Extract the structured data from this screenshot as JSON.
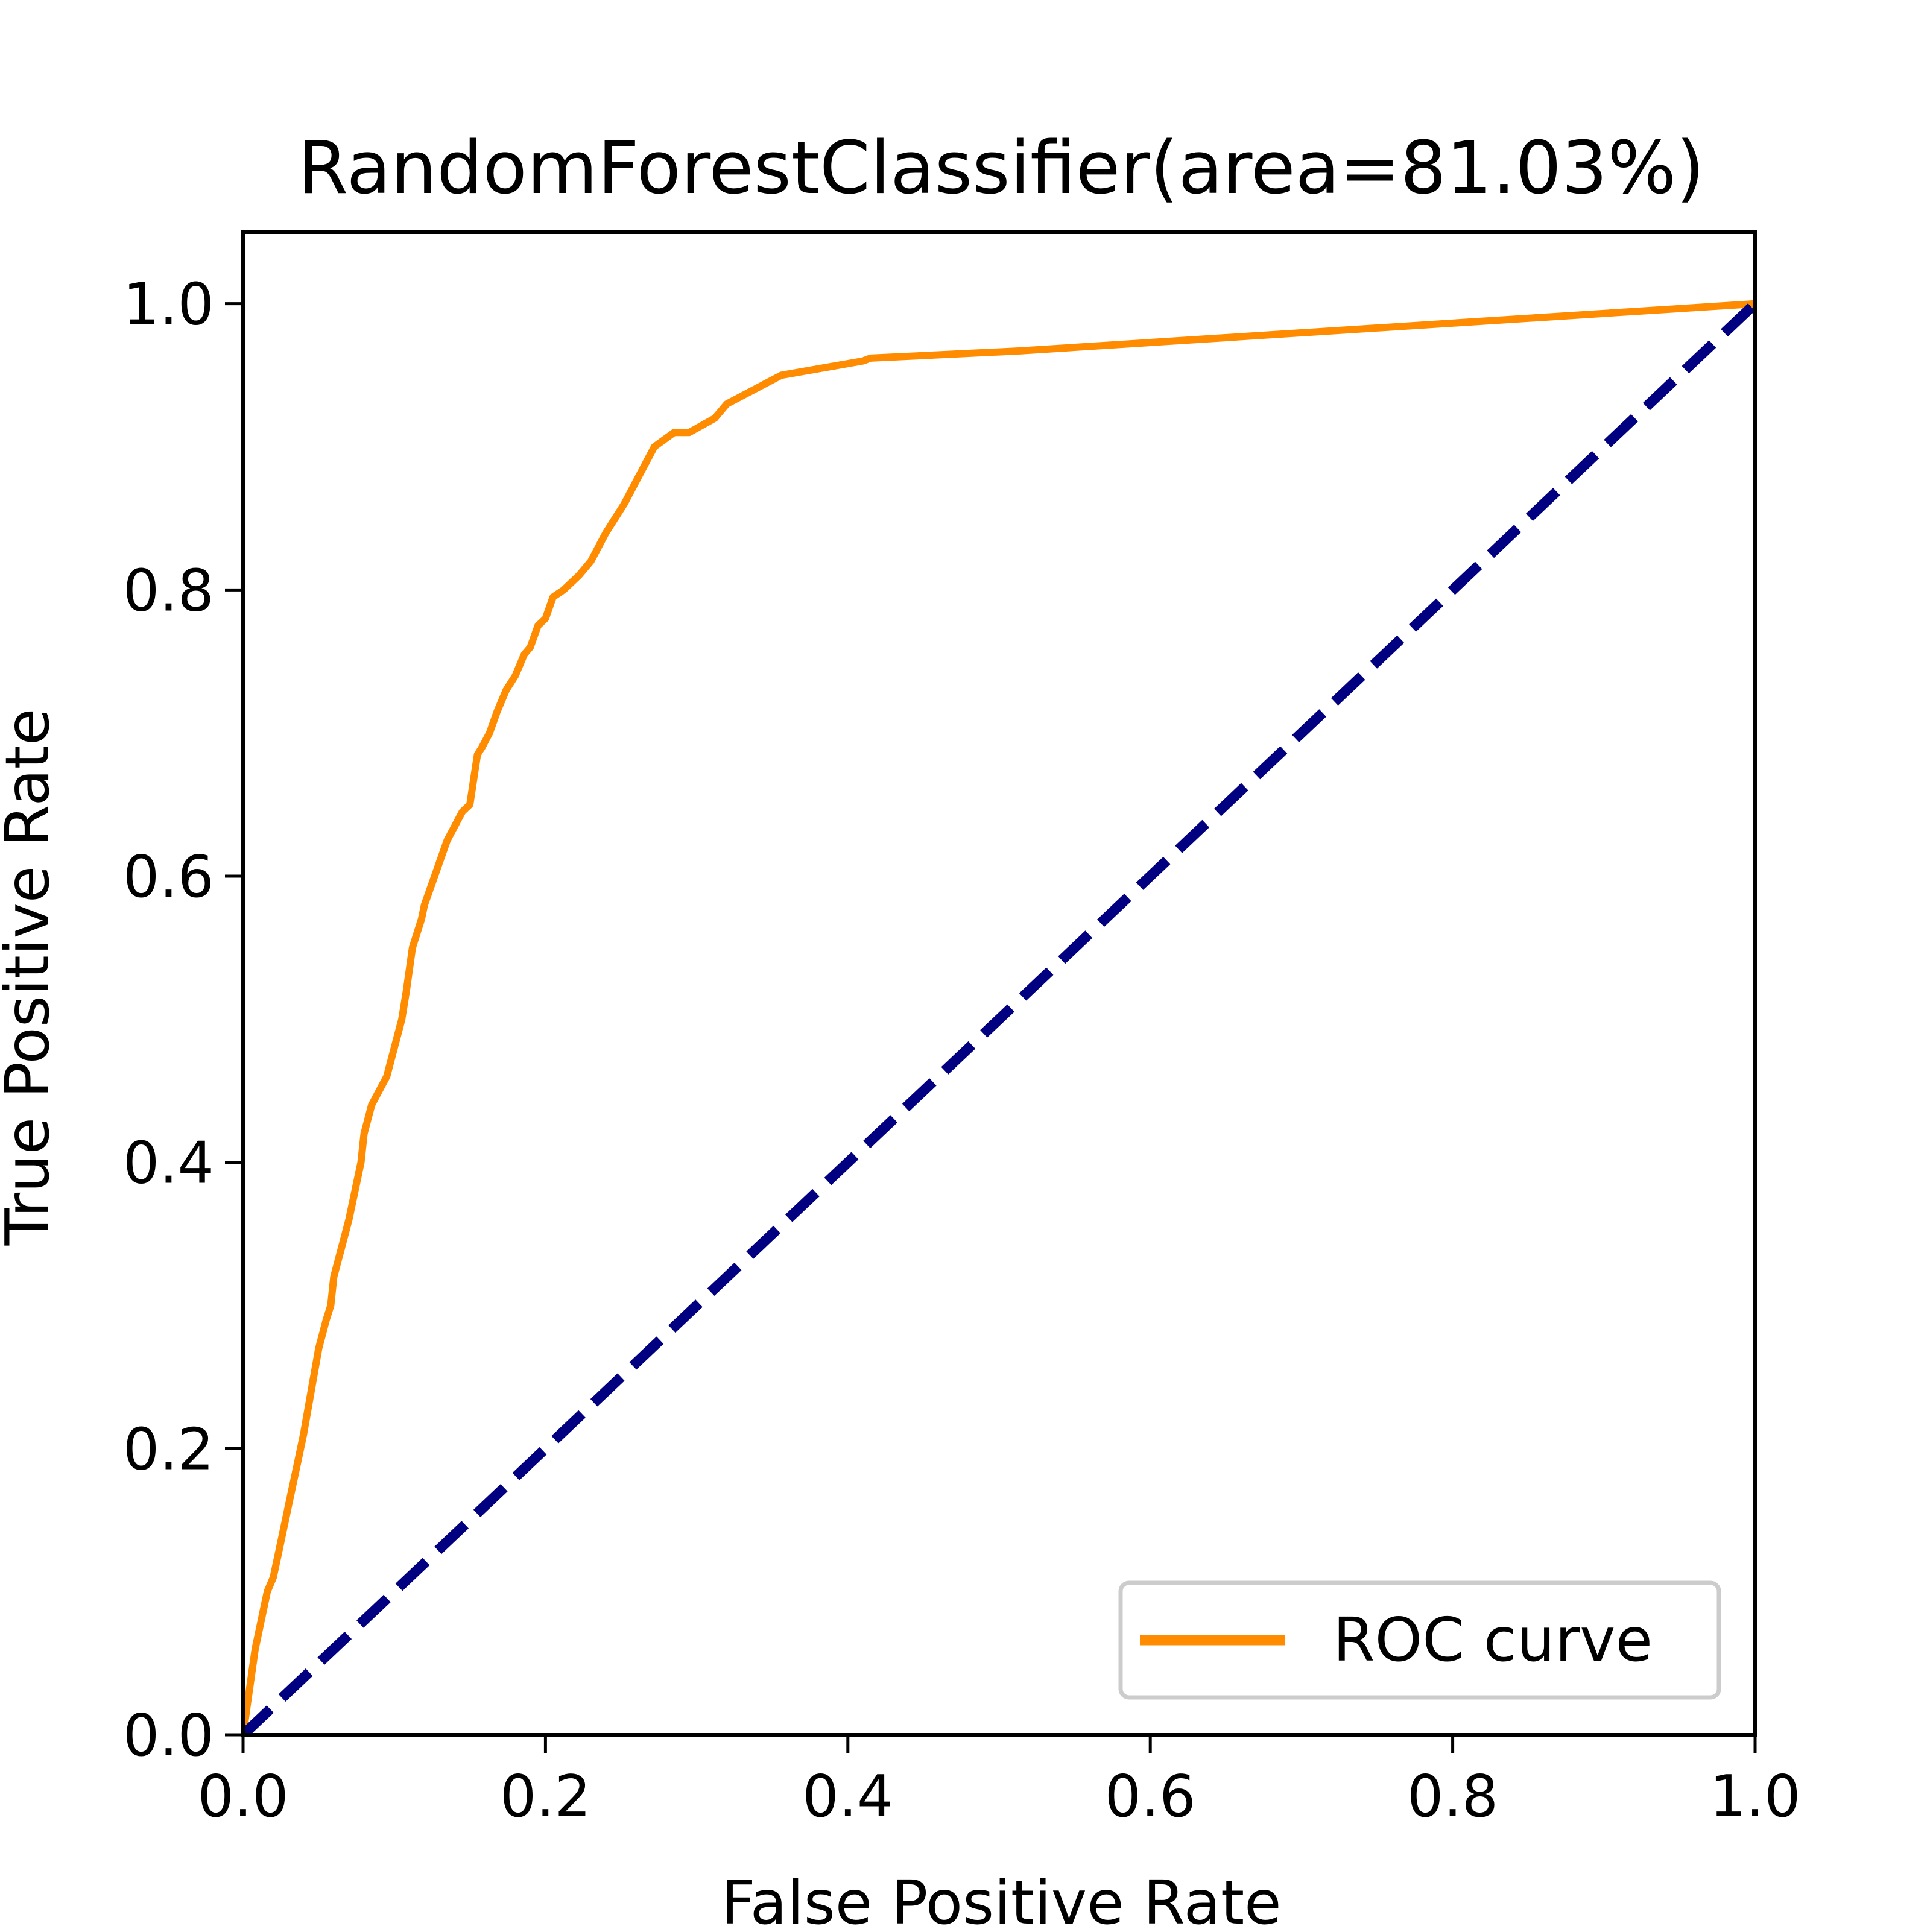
{
  "chart_data": {
    "type": "line",
    "title": "RandomForestClassifier(area=81.03%)",
    "xlabel": "False Positive Rate",
    "ylabel": "True Positive Rate",
    "xlim": [
      0.0,
      1.0
    ],
    "ylim": [
      0.0,
      1.05
    ],
    "xticks": [
      "0.0",
      "0.2",
      "0.4",
      "0.6",
      "0.8",
      "1.0"
    ],
    "yticks": [
      "0.0",
      "0.2",
      "0.4",
      "0.6",
      "0.8",
      "1.0"
    ],
    "grid": false,
    "legend": {
      "position": "lower right",
      "entries": [
        "ROC curve"
      ]
    },
    "series": [
      {
        "name": "ROC curve",
        "color": "#ff8c00",
        "style": "solid",
        "x": [
          0.0,
          0.004,
          0.008,
          0.012,
          0.016,
          0.02,
          0.024,
          0.028,
          0.032,
          0.036,
          0.04,
          0.045,
          0.05,
          0.055,
          0.058,
          0.06,
          0.065,
          0.07,
          0.074,
          0.078,
          0.08,
          0.085,
          0.09,
          0.095,
          0.1,
          0.105,
          0.108,
          0.112,
          0.118,
          0.12,
          0.125,
          0.13,
          0.135,
          0.14,
          0.145,
          0.15,
          0.155,
          0.158,
          0.163,
          0.168,
          0.174,
          0.18,
          0.186,
          0.19,
          0.195,
          0.2,
          0.205,
          0.212,
          0.222,
          0.23,
          0.24,
          0.252,
          0.262,
          0.272,
          0.285,
          0.295,
          0.312,
          0.32,
          0.356,
          0.41,
          0.415,
          0.513,
          1.0
        ],
        "y": [
          0.0,
          0.03,
          0.06,
          0.08,
          0.1,
          0.11,
          0.13,
          0.15,
          0.17,
          0.19,
          0.21,
          0.24,
          0.27,
          0.29,
          0.3,
          0.32,
          0.34,
          0.36,
          0.38,
          0.4,
          0.42,
          0.44,
          0.45,
          0.46,
          0.48,
          0.5,
          0.52,
          0.55,
          0.57,
          0.58,
          0.595,
          0.61,
          0.625,
          0.635,
          0.645,
          0.65,
          0.685,
          0.69,
          0.7,
          0.715,
          0.73,
          0.74,
          0.755,
          0.76,
          0.775,
          0.78,
          0.795,
          0.8,
          0.81,
          0.82,
          0.84,
          0.86,
          0.88,
          0.9,
          0.91,
          0.91,
          0.92,
          0.93,
          0.95,
          0.96,
          0.962,
          0.967,
          1.0
        ]
      },
      {
        "name": "",
        "color": "#000080",
        "style": "dashed",
        "x": [
          0.0,
          1.0
        ],
        "y": [
          0.0,
          1.0
        ]
      }
    ]
  }
}
